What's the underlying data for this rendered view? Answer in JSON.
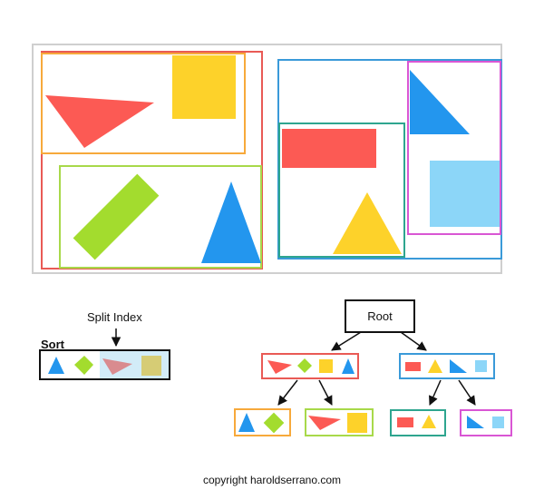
{
  "labels": {
    "split_index": "Split Index",
    "sort": "Sort",
    "root": "Root",
    "copyright": "copyright haroldserrano.com"
  },
  "colors": {
    "red": "#fc5a54",
    "orange": "#f7a93b",
    "yellow": "#fdd22a",
    "green": "#a3dc2e",
    "green_box": "#a8d94a",
    "blue": "#2396ee",
    "light_blue": "#8cd6f8",
    "teal": "#2ea58f",
    "magenta": "#d956d4",
    "box_red": "#e95a55",
    "box_blue": "#3a9ad9",
    "frame_gray": "#cfcfcf",
    "split_highlight": "#d2ecf8"
  }
}
